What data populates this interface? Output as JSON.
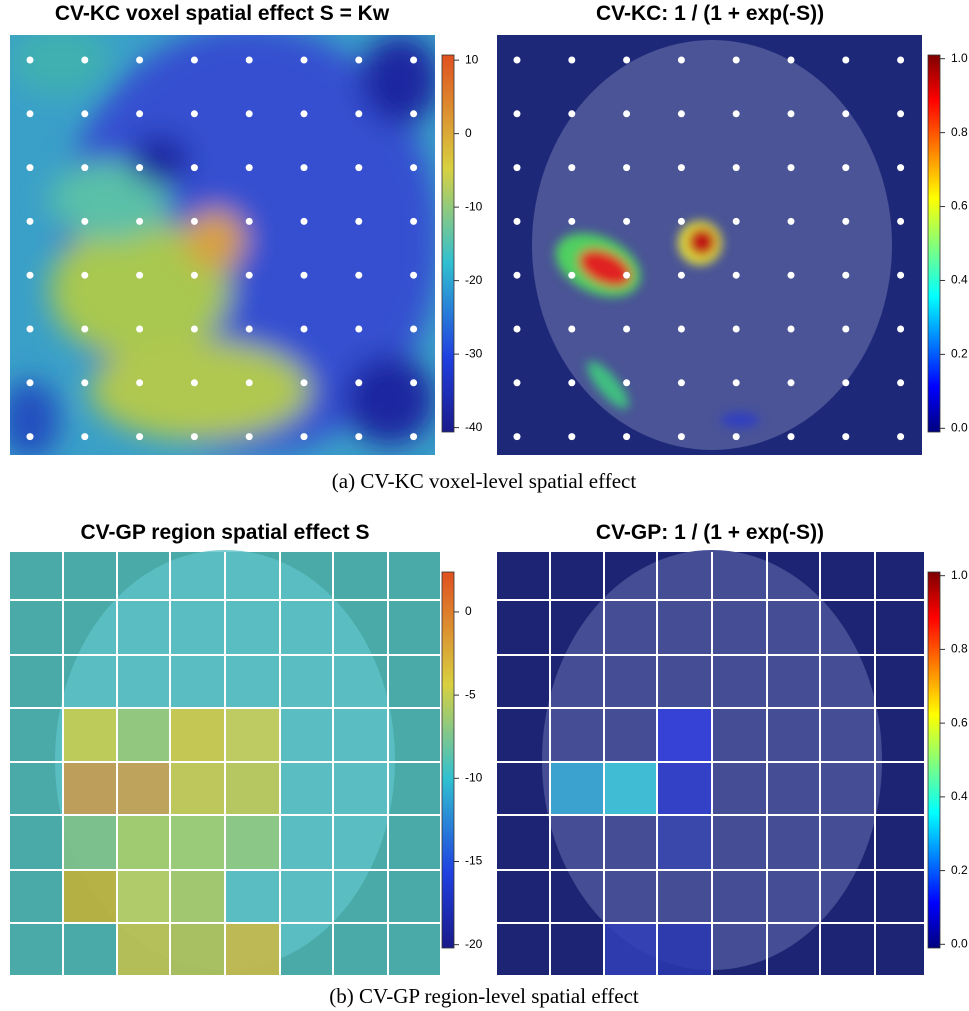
{
  "panels": [
    {
      "title": "CV-KC voxel spatial effect S = Kw",
      "colorbar": {
        "lim": [
          -40.6,
          10.7
        ],
        "ticks": [
          10,
          0,
          -10,
          -20,
          -30,
          -40
        ]
      }
    },
    {
      "title": "CV-KC: 1 / (1 + exp(-S))",
      "colorbar": {
        "lim": [
          -0.01,
          1.01
        ],
        "ticks": [
          {
            "value": 1.0,
            "label": "1.0"
          },
          0.8,
          0.6,
          0.4,
          0.2,
          {
            "value": 0.0,
            "label": "0.0"
          }
        ]
      }
    },
    {
      "title": "CV-GP region spatial effect S",
      "colorbar": {
        "lim": [
          -20.2,
          2.4
        ],
        "ticks": [
          0,
          -5,
          -10,
          -15,
          -20
        ]
      }
    },
    {
      "title": "CV-GP: 1 / (1 + exp(-S))",
      "colorbar": {
        "lim": [
          -0.01,
          1.01
        ],
        "ticks": [
          {
            "value": 1.0,
            "label": "1.0"
          },
          0.8,
          0.6,
          0.4,
          0.2,
          {
            "value": 0.0,
            "label": "0.0"
          }
        ]
      }
    }
  ],
  "captions": [
    "(a) CV-KC voxel-level spatial effect",
    "(b) CV-GP region-level spatial effect"
  ]
}
